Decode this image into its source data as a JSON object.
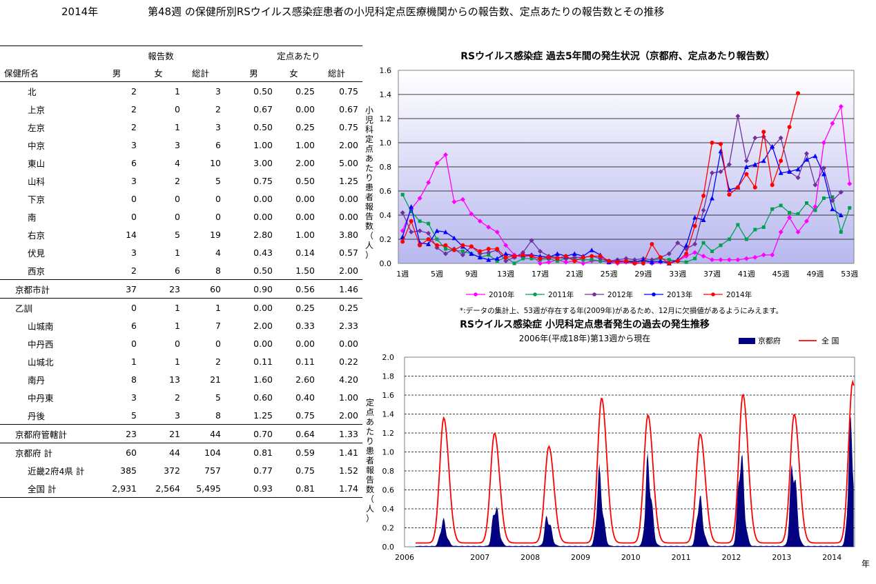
{
  "header": {
    "year": "2014年",
    "title": "第48週 の保健所別RSウイルス感染症患者の小児科定点医療機関からの報告数、定点あたりの報告数とその推移"
  },
  "table": {
    "group_reports": "報告数",
    "group_per_sentinel": "定点あたり",
    "col_name": "保健所名",
    "col_male": "男",
    "col_female": "女",
    "col_total": "総計",
    "col_male2": "男",
    "col_female2": "女",
    "col_total2": "総計",
    "rows": [
      {
        "name": "北",
        "m": "2",
        "f": "1",
        "t": "3",
        "pm": "0.50",
        "pf": "0.25",
        "pt": "0.75"
      },
      {
        "name": "上京",
        "m": "2",
        "f": "0",
        "t": "2",
        "pm": "0.67",
        "pf": "0.00",
        "pt": "0.67"
      },
      {
        "name": "左京",
        "m": "2",
        "f": "1",
        "t": "3",
        "pm": "0.50",
        "pf": "0.25",
        "pt": "0.75"
      },
      {
        "name": "中京",
        "m": "3",
        "f": "3",
        "t": "6",
        "pm": "1.00",
        "pf": "1.00",
        "pt": "2.00"
      },
      {
        "name": "東山",
        "m": "6",
        "f": "4",
        "t": "10",
        "pm": "3.00",
        "pf": "2.00",
        "pt": "5.00"
      },
      {
        "name": "山科",
        "m": "3",
        "f": "2",
        "t": "5",
        "pm": "0.75",
        "pf": "0.50",
        "pt": "1.25"
      },
      {
        "name": "下京",
        "m": "0",
        "f": "0",
        "t": "0",
        "pm": "0.00",
        "pf": "0.00",
        "pt": "0.00"
      },
      {
        "name": "南",
        "m": "0",
        "f": "0",
        "t": "0",
        "pm": "0.00",
        "pf": "0.00",
        "pt": "0.00"
      },
      {
        "name": "右京",
        "m": "14",
        "f": "5",
        "t": "19",
        "pm": "2.80",
        "pf": "1.00",
        "pt": "3.80"
      },
      {
        "name": "伏見",
        "m": "3",
        "f": "1",
        "t": "4",
        "pm": "0.43",
        "pf": "0.14",
        "pt": "0.57"
      },
      {
        "name": "西京",
        "m": "2",
        "f": "6",
        "t": "8",
        "pm": "0.50",
        "pf": "1.50",
        "pt": "2.00"
      },
      {
        "name": "京都市計",
        "m": "37",
        "f": "23",
        "t": "60",
        "pm": "0.90",
        "pf": "0.56",
        "pt": "1.46",
        "sub": true
      },
      {
        "name": "乙訓",
        "m": "0",
        "f": "1",
        "t": "1",
        "pm": "0.00",
        "pf": "0.25",
        "pt": "0.25",
        "sub": true,
        "indent": true
      },
      {
        "name": "山城南",
        "m": "6",
        "f": "1",
        "t": "7",
        "pm": "2.00",
        "pf": "0.33",
        "pt": "2.33"
      },
      {
        "name": "中丹西",
        "m": "0",
        "f": "0",
        "t": "0",
        "pm": "0.00",
        "pf": "0.00",
        "pt": "0.00"
      },
      {
        "name": "山城北",
        "m": "1",
        "f": "1",
        "t": "2",
        "pm": "0.11",
        "pf": "0.11",
        "pt": "0.22"
      },
      {
        "name": "南丹",
        "m": "8",
        "f": "13",
        "t": "21",
        "pm": "1.60",
        "pf": "2.60",
        "pt": "4.20"
      },
      {
        "name": "中丹東",
        "m": "3",
        "f": "2",
        "t": "5",
        "pm": "0.60",
        "pf": "0.40",
        "pt": "1.00"
      },
      {
        "name": "丹後",
        "m": "5",
        "f": "3",
        "t": "8",
        "pm": "1.25",
        "pf": "0.75",
        "pt": "2.00"
      },
      {
        "name": "京都府管轄計",
        "m": "23",
        "f": "21",
        "t": "44",
        "pm": "0.70",
        "pf": "0.64",
        "pt": "1.33",
        "sub": true
      },
      {
        "name": "京都府  計",
        "m": "60",
        "f": "44",
        "t": "104",
        "pm": "0.81",
        "pf": "0.59",
        "pt": "1.41",
        "sub": true
      },
      {
        "name": "近畿2府4県  計",
        "m": "385",
        "f": "372",
        "t": "757",
        "pm": "0.77",
        "pf": "0.75",
        "pt": "1.52"
      },
      {
        "name": "全国  計",
        "m": "2,931",
        "f": "2,564",
        "t": "5,495",
        "pm": "0.93",
        "pf": "0.81",
        "pt": "1.74",
        "last": true
      }
    ]
  },
  "chart_data": [
    {
      "type": "line",
      "title": "RSウイルス感染症  過去5年間の発生状況（京都府、定点あたり報告数）",
      "ylabel": "小児科定点あたり患者報告数（人）",
      "ylim": [
        0,
        1.6
      ],
      "yticks": [
        "0.0",
        "0.2",
        "0.4",
        "0.6",
        "0.8",
        "1.0",
        "1.2",
        "1.4",
        "1.6"
      ],
      "xticks": [
        "1週",
        "5週",
        "9週",
        "13週",
        "17週",
        "21週",
        "25週",
        "29週",
        "33週",
        "37週",
        "41週",
        "45週",
        "49週",
        "53週"
      ],
      "note": "*:データの集計上、53週が存在する年(2009年)があるため、12月に欠損値があるようにみえます。",
      "colors": {
        "2010年": "#ff00ff",
        "2011年": "#00a050",
        "2012年": "#7030a0",
        "2013年": "#0000ff",
        "2014年": "#ff0000"
      },
      "series": [
        {
          "name": "2010年",
          "values": [
            0.27,
            0.45,
            0.54,
            0.67,
            0.83,
            0.9,
            0.51,
            0.53,
            0.41,
            0.35,
            0.3,
            0.26,
            0.15,
            0.07,
            0.05,
            0.07,
            0.0,
            0.01,
            0.03,
            0.01,
            0.02,
            0.0,
            0.02,
            0.02,
            0.01,
            0.0,
            0.01,
            0.0,
            0.02,
            0.0,
            0.01,
            0.02,
            0.02,
            0.06,
            0.09,
            0.06,
            0.03,
            0.03,
            0.03,
            0.03,
            0.04,
            0.05,
            0.07,
            0.07,
            0.26,
            0.38,
            0.26,
            0.35,
            0.47,
            1.0,
            1.16,
            1.3,
            0.66
          ]
        },
        {
          "name": "2011年",
          "values": [
            0.57,
            0.43,
            0.35,
            0.33,
            0.2,
            0.12,
            0.11,
            0.1,
            0.08,
            0.05,
            0.07,
            0.02,
            0.05,
            0.0,
            0.04,
            0.04,
            0.03,
            0.04,
            0.02,
            0.04,
            0.04,
            0.03,
            0.03,
            0.02,
            0.02,
            0.01,
            0.02,
            0.02,
            0.01,
            0.02,
            0.04,
            0.03,
            0.02,
            0.01,
            0.04,
            0.17,
            0.1,
            0.15,
            0.2,
            0.32,
            0.2,
            0.28,
            0.3,
            0.45,
            0.48,
            0.42,
            0.41,
            0.5,
            0.44,
            0.54,
            0.55,
            0.26,
            0.46
          ]
        },
        {
          "name": "2012年",
          "values": [
            0.42,
            0.26,
            0.27,
            0.25,
            0.13,
            0.08,
            0.12,
            0.07,
            0.14,
            0.08,
            0.09,
            0.11,
            0.02,
            0.05,
            0.09,
            0.19,
            0.1,
            0.06,
            0.05,
            0.04,
            0.05,
            0.05,
            0.06,
            0.04,
            0.02,
            0.03,
            0.04,
            0.03,
            0.04,
            0.03,
            0.05,
            0.08,
            0.17,
            0.12,
            0.16,
            0.44,
            0.75,
            0.76,
            0.82,
            1.22,
            0.85,
            1.04,
            1.05,
            0.96,
            1.04,
            0.76,
            0.71,
            0.91,
            0.65,
            0.79,
            0.52,
            0.59,
            null
          ]
        },
        {
          "name": "2013年",
          "values": [
            0.22,
            0.47,
            0.17,
            0.16,
            0.27,
            0.26,
            0.21,
            0.14,
            0.08,
            0.05,
            0.03,
            0.04,
            0.08,
            0.06,
            0.07,
            0.07,
            0.06,
            0.05,
            0.08,
            0.06,
            0.08,
            0.06,
            0.11,
            0.07,
            0.01,
            0.02,
            0.02,
            0.01,
            0.03,
            0.01,
            0.02,
            0.0,
            0.03,
            0.15,
            0.38,
            0.36,
            0.54,
            0.93,
            0.61,
            0.63,
            0.8,
            0.82,
            0.85,
            0.97,
            0.75,
            0.76,
            0.78,
            0.86,
            0.89,
            0.74,
            0.45,
            0.4,
            null
          ]
        },
        {
          "name": "2014年",
          "values": [
            0.18,
            0.35,
            0.15,
            0.2,
            0.15,
            0.15,
            0.11,
            0.15,
            0.14,
            0.1,
            0.12,
            0.12,
            0.05,
            0.06,
            0.07,
            0.06,
            0.04,
            0.05,
            0.04,
            0.06,
            0.02,
            0.05,
            0.06,
            0.06,
            0.02,
            0.01,
            0.02,
            0.0,
            0.0,
            0.16,
            0.05,
            0.0,
            0.02,
            0.08,
            0.31,
            0.56,
            1.0,
            0.99,
            0.57,
            0.63,
            0.74,
            0.63,
            1.09,
            0.65,
            0.85,
            1.13,
            1.41,
            null,
            null,
            null,
            null,
            null,
            null
          ]
        }
      ]
    },
    {
      "type": "area",
      "title": "RSウイルス感染症  小児科定点患者発生の過去の発生推移",
      "subtitle": "2006年(平成18年)第13週から現在",
      "ylabel": "定点あたり患者報告数（人）",
      "xlabel": "年",
      "ylim": [
        0,
        2.0
      ],
      "yticks": [
        "0.0",
        "0.2",
        "0.4",
        "0.6",
        "0.8",
        "1.0",
        "1.2",
        "1.4",
        "1.6",
        "1.8",
        "2.0"
      ],
      "xticks": [
        "2006",
        "2007",
        "2008",
        "2009",
        "2010",
        "2011",
        "2012",
        "2013",
        "2014"
      ],
      "colors": {
        "京都府": "#000080",
        "全  国": "#ff0000"
      },
      "series": [
        {
          "name": "京都府",
          "peaks": [
            [
              2006.76,
              0.32
            ],
            [
              2007.8,
              0.52
            ],
            [
              2008.84,
              0.38
            ],
            [
              2009.87,
              0.88
            ],
            [
              2010.84,
              1.03
            ],
            [
              2011.86,
              0.6
            ],
            [
              2012.68,
              1.15
            ],
            [
              2013.72,
              1.07
            ],
            [
              2014.87,
              1.41
            ]
          ]
        },
        {
          "name": "全  国",
          "peaks": [
            [
              2006.78,
              1.36
            ],
            [
              2007.79,
              1.2
            ],
            [
              2008.87,
              1.06
            ],
            [
              2009.92,
              1.57
            ],
            [
              2010.84,
              1.39
            ],
            [
              2011.88,
              1.19
            ],
            [
              2012.73,
              1.61
            ],
            [
              2013.75,
              1.4
            ],
            [
              2014.91,
              1.74
            ]
          ]
        }
      ]
    }
  ]
}
